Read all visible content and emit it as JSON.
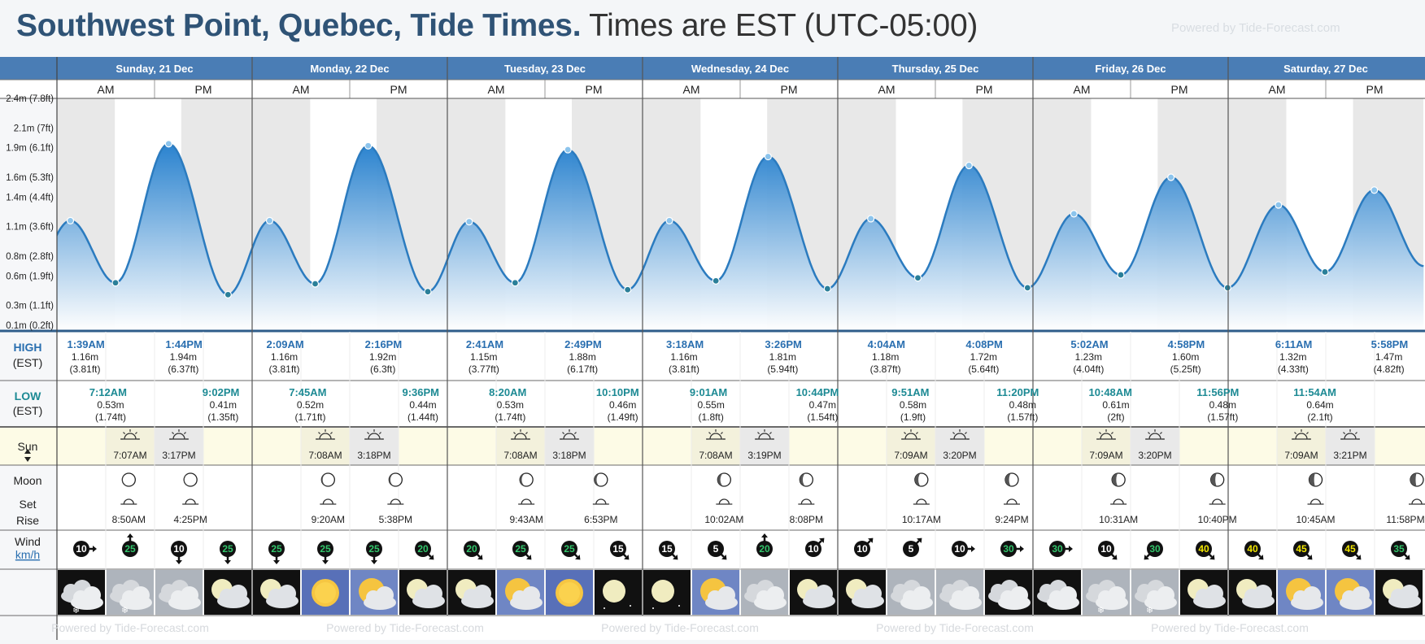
{
  "header": {
    "location": "Southwest Point, Quebec, Tide Times.",
    "timezone_note": "Times are EST (UTC-05:00)",
    "powered_by": "Powered by Tide-Forecast.com"
  },
  "row_labels": {
    "high": "HIGH",
    "high_tz": "(EST)",
    "low": "LOW",
    "low_tz": "(EST)",
    "sun": "Sun",
    "moon_1": "Moon",
    "moon_2": "Set",
    "moon_3": "Rise",
    "wind": "Wind",
    "wind_unit": "km/h"
  },
  "days": [
    {
      "label": "Sunday, 21 Dec",
      "am": "AM",
      "pm": "PM"
    },
    {
      "label": "Monday, 22 Dec",
      "am": "AM",
      "pm": "PM"
    },
    {
      "label": "Tuesday, 23 Dec",
      "am": "AM",
      "pm": "PM"
    },
    {
      "label": "Wednesday, 24 Dec",
      "am": "AM",
      "pm": "PM"
    },
    {
      "label": "Thursday, 25 Dec",
      "am": "AM",
      "pm": "PM"
    },
    {
      "label": "Friday, 26 Dec",
      "am": "AM",
      "pm": "PM"
    },
    {
      "label": "Saturday, 27 Dec",
      "am": "AM",
      "pm": "PM"
    }
  ],
  "chart_data": {
    "type": "area",
    "ylabel_ticks": [
      "0.1m (0.2ft)",
      "0.3m (1.1ft)",
      "0.6m (1.9ft)",
      "0.8m (2.8ft)",
      "1.1m (3.6ft)",
      "1.4m (4.4ft)",
      "1.6m (5.3ft)",
      "1.9m (6.1ft)",
      "2.1m (7ft)",
      "2.4m (7.8ft)"
    ],
    "ylim": [
      0.05,
      2.4
    ],
    "tides": [
      {
        "day": 0,
        "time": "1:39AM",
        "height_m": 1.16,
        "height_label": "1.16m",
        "height_ft": "(3.81ft)",
        "type": "high"
      },
      {
        "day": 0,
        "time": "7:12AM",
        "height_m": 0.53,
        "height_label": "0.53m",
        "height_ft": "(1.74ft)",
        "type": "low"
      },
      {
        "day": 0,
        "time": "1:44PM",
        "height_m": 1.94,
        "height_label": "1.94m",
        "height_ft": "(6.37ft)",
        "type": "high"
      },
      {
        "day": 0,
        "time": "9:02PM",
        "height_m": 0.41,
        "height_label": "0.41m",
        "height_ft": "(1.35ft)",
        "type": "low"
      },
      {
        "day": 1,
        "time": "2:09AM",
        "height_m": 1.16,
        "height_label": "1.16m",
        "height_ft": "(3.81ft)",
        "type": "high"
      },
      {
        "day": 1,
        "time": "7:45AM",
        "height_m": 0.52,
        "height_label": "0.52m",
        "height_ft": "(1.71ft)",
        "type": "low"
      },
      {
        "day": 1,
        "time": "2:16PM",
        "height_m": 1.92,
        "height_label": "1.92m",
        "height_ft": "(6.3ft)",
        "type": "high"
      },
      {
        "day": 1,
        "time": "9:36PM",
        "height_m": 0.44,
        "height_label": "0.44m",
        "height_ft": "(1.44ft)",
        "type": "low"
      },
      {
        "day": 2,
        "time": "2:41AM",
        "height_m": 1.15,
        "height_label": "1.15m",
        "height_ft": "(3.77ft)",
        "type": "high"
      },
      {
        "day": 2,
        "time": "8:20AM",
        "height_m": 0.53,
        "height_label": "0.53m",
        "height_ft": "(1.74ft)",
        "type": "low"
      },
      {
        "day": 2,
        "time": "2:49PM",
        "height_m": 1.88,
        "height_label": "1.88m",
        "height_ft": "(6.17ft)",
        "type": "high"
      },
      {
        "day": 2,
        "time": "10:10PM",
        "height_m": 0.46,
        "height_label": "0.46m",
        "height_ft": "(1.49ft)",
        "type": "low"
      },
      {
        "day": 3,
        "time": "3:18AM",
        "height_m": 1.16,
        "height_label": "1.16m",
        "height_ft": "(3.81ft)",
        "type": "high"
      },
      {
        "day": 3,
        "time": "9:01AM",
        "height_m": 0.55,
        "height_label": "0.55m",
        "height_ft": "(1.8ft)",
        "type": "low"
      },
      {
        "day": 3,
        "time": "3:26PM",
        "height_m": 1.81,
        "height_label": "1.81m",
        "height_ft": "(5.94ft)",
        "type": "high"
      },
      {
        "day": 3,
        "time": "10:44PM",
        "height_m": 0.47,
        "height_label": "0.47m",
        "height_ft": "(1.54ft)",
        "type": "low"
      },
      {
        "day": 4,
        "time": "4:04AM",
        "height_m": 1.18,
        "height_label": "1.18m",
        "height_ft": "(3.87ft)",
        "type": "high"
      },
      {
        "day": 4,
        "time": "9:51AM",
        "height_m": 0.58,
        "height_label": "0.58m",
        "height_ft": "(1.9ft)",
        "type": "low"
      },
      {
        "day": 4,
        "time": "4:08PM",
        "height_m": 1.72,
        "height_label": "1.72m",
        "height_ft": "(5.64ft)",
        "type": "high"
      },
      {
        "day": 4,
        "time": "11:20PM",
        "height_m": 0.48,
        "height_label": "0.48m",
        "height_ft": "(1.57ft)",
        "type": "low"
      },
      {
        "day": 5,
        "time": "5:02AM",
        "height_m": 1.23,
        "height_label": "1.23m",
        "height_ft": "(4.04ft)",
        "type": "high"
      },
      {
        "day": 5,
        "time": "10:48AM",
        "height_m": 0.61,
        "height_label": "0.61m",
        "height_ft": "(2ft)",
        "type": "low"
      },
      {
        "day": 5,
        "time": "4:58PM",
        "height_m": 1.6,
        "height_label": "1.60m",
        "height_ft": "(5.25ft)",
        "type": "high"
      },
      {
        "day": 5,
        "time": "11:56PM",
        "height_m": 0.48,
        "height_label": "0.48m",
        "height_ft": "(1.57ft)",
        "type": "low"
      },
      {
        "day": 6,
        "time": "6:11AM",
        "height_m": 1.32,
        "height_label": "1.32m",
        "height_ft": "(4.33ft)",
        "type": "high"
      },
      {
        "day": 6,
        "time": "11:54AM",
        "height_m": 0.64,
        "height_label": "0.64m",
        "height_ft": "(2.1ft)",
        "type": "low"
      },
      {
        "day": 6,
        "time": "5:58PM",
        "height_m": 1.47,
        "height_label": "1.47m",
        "height_ft": "(4.82ft)",
        "type": "high"
      }
    ]
  },
  "sun": [
    {
      "day": 0,
      "rise": "7:07AM",
      "set": "3:17PM"
    },
    {
      "day": 1,
      "rise": "7:08AM",
      "set": "3:18PM"
    },
    {
      "day": 2,
      "rise": "7:08AM",
      "set": "3:18PM"
    },
    {
      "day": 3,
      "rise": "7:08AM",
      "set": "3:19PM"
    },
    {
      "day": 4,
      "rise": "7:09AM",
      "set": "3:20PM"
    },
    {
      "day": 5,
      "rise": "7:09AM",
      "set": "3:20PM"
    },
    {
      "day": 6,
      "rise": "7:09AM",
      "set": "3:21PM"
    }
  ],
  "moon": [
    {
      "day": 0,
      "set": "8:50AM",
      "rise": "4:25PM"
    },
    {
      "day": 1,
      "set": "9:20AM",
      "rise": "5:38PM"
    },
    {
      "day": 2,
      "set": "9:43AM",
      "rise": "6:53PM"
    },
    {
      "day": 3,
      "set": "10:02AM",
      "rise": "8:08PM"
    },
    {
      "day": 4,
      "set": "10:17AM",
      "rise": "9:24PM"
    },
    {
      "day": 5,
      "set": "10:31AM",
      "rise": "10:40PM"
    },
    {
      "day": 6,
      "set": "10:45AM",
      "rise": "11:58PM"
    }
  ],
  "wind": [
    {
      "speed": "10",
      "dir": "right"
    },
    {
      "speed": "25",
      "dir": "up"
    },
    {
      "speed": "10",
      "dir": "down"
    },
    {
      "speed": "25",
      "dir": "down"
    },
    {
      "speed": "25",
      "dir": "down"
    },
    {
      "speed": "25",
      "dir": "down"
    },
    {
      "speed": "25",
      "dir": "down"
    },
    {
      "speed": "20",
      "dir": "down-right"
    },
    {
      "speed": "20",
      "dir": "down-right"
    },
    {
      "speed": "25",
      "dir": "down-right"
    },
    {
      "speed": "25",
      "dir": "down-right"
    },
    {
      "speed": "15",
      "dir": "down-right"
    },
    {
      "speed": "15",
      "dir": "down-right"
    },
    {
      "speed": "5",
      "dir": "down-right"
    },
    {
      "speed": "20",
      "dir": "up"
    },
    {
      "speed": "10",
      "dir": "up-right"
    },
    {
      "speed": "10",
      "dir": "up-right"
    },
    {
      "speed": "5",
      "dir": "up-right"
    },
    {
      "speed": "10",
      "dir": "right"
    },
    {
      "speed": "30",
      "dir": "right"
    },
    {
      "speed": "30",
      "dir": "right"
    },
    {
      "speed": "10",
      "dir": "down-right"
    },
    {
      "speed": "30",
      "dir": "down-left"
    },
    {
      "speed": "40",
      "dir": "down-right"
    },
    {
      "speed": "40",
      "dir": "down-right"
    },
    {
      "speed": "45",
      "dir": "down-right"
    },
    {
      "speed": "45",
      "dir": "down-right"
    },
    {
      "speed": "35",
      "dir": "down-right"
    }
  ],
  "weather": [
    {
      "icon": "cloud-snow-night-icon"
    },
    {
      "icon": "cloud-snow-icon"
    },
    {
      "icon": "cloudy-icon"
    },
    {
      "icon": "moon-cloud-icon"
    },
    {
      "icon": "moon-cloud-icon"
    },
    {
      "icon": "sunny-icon"
    },
    {
      "icon": "sun-cloud-icon"
    },
    {
      "icon": "moon-cloud-icon"
    },
    {
      "icon": "moon-cloud-icon"
    },
    {
      "icon": "sun-cloud-icon"
    },
    {
      "icon": "sunny-icon"
    },
    {
      "icon": "moon-clear-icon"
    },
    {
      "icon": "moon-clear-icon"
    },
    {
      "icon": "sun-cloud-icon"
    },
    {
      "icon": "cloudy-icon"
    },
    {
      "icon": "moon-cloud-icon"
    },
    {
      "icon": "moon-cloud-icon"
    },
    {
      "icon": "cloudy-icon"
    },
    {
      "icon": "cloudy-icon"
    },
    {
      "icon": "cloudy-night-icon"
    },
    {
      "icon": "cloudy-night-icon"
    },
    {
      "icon": "cloud-snow-icon"
    },
    {
      "icon": "cloud-snow-icon"
    },
    {
      "icon": "moon-cloud-icon"
    },
    {
      "icon": "moon-cloud-icon"
    },
    {
      "icon": "sun-cloud-icon"
    },
    {
      "icon": "sun-cloud-icon"
    },
    {
      "icon": "moon-cloud-icon"
    }
  ],
  "footer": {
    "powered_by": "Powered by Tide-Forecast.com"
  },
  "colors": {
    "header_blue": "#4a7db5",
    "tide_line": "#2b7bbf",
    "high_text": "#2a6fb0",
    "low_text": "#1d8a94",
    "sun_bg": "#fdfbe6"
  }
}
